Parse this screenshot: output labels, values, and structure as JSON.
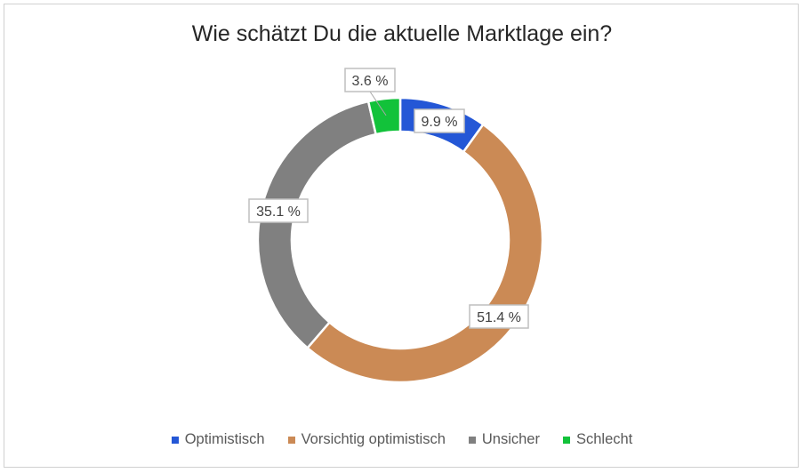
{
  "chart_data": {
    "type": "pie",
    "variant": "donut",
    "title": "Wie schätzt Du die aktuelle Marktlage ein?",
    "categories": [
      "Optimistisch",
      "Vorsichtig optimistisch",
      "Unsicher",
      "Schlecht"
    ],
    "values": [
      9.9,
      51.4,
      35.1,
      3.6
    ],
    "data_labels": [
      "9.9 %",
      "51.4 %",
      "35.1 %",
      "3.6 %"
    ],
    "colors": [
      "#2457D6",
      "#CB8A55",
      "#808080",
      "#12C23A"
    ],
    "legend_position": "bottom"
  }
}
